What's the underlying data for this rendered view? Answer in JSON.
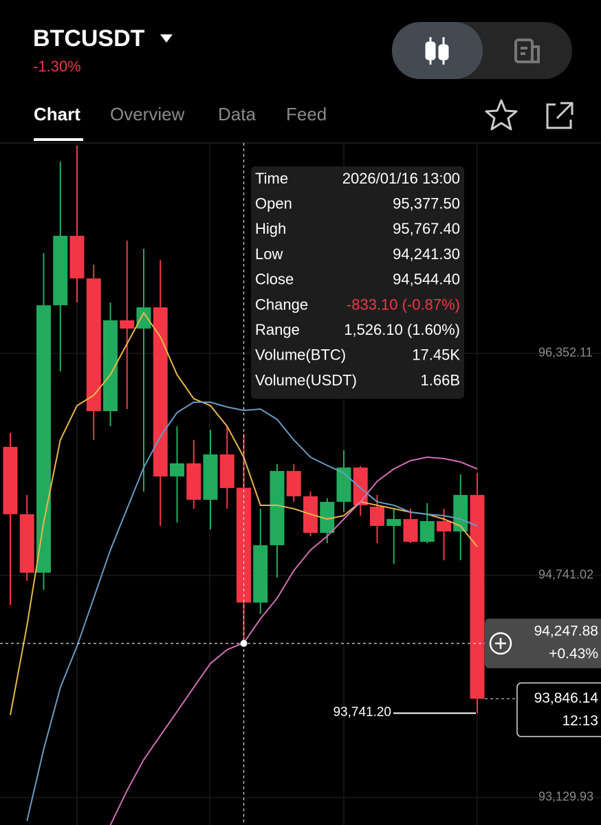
{
  "header": {
    "title": "BTCUSDT",
    "change": "-1.30%",
    "tabs": [
      "Chart",
      "Overview",
      "Data",
      "Feed"
    ]
  },
  "tooltip": {
    "rows": [
      [
        "Time",
        "2026/01/16 13:00"
      ],
      [
        "Open",
        "95,377.50"
      ],
      [
        "High",
        "95,767.40"
      ],
      [
        "Low",
        "94,241.30"
      ],
      [
        "Close",
        "94,544.40"
      ],
      [
        "Change",
        "-833.10 (-0.87%)"
      ],
      [
        "Range",
        "1,526.10 (1.60%)"
      ],
      [
        "Volume(BTC)",
        "17.45K"
      ],
      [
        "Volume(USDT)",
        "1.66B"
      ]
    ]
  },
  "chart_data": {
    "type": "candlestick",
    "up_color": "#22ab5e",
    "down_color": "#f23645",
    "open": [
      95674,
      95185,
      94761,
      96701,
      97205,
      96896,
      95933,
      96592,
      96532,
      96686,
      95459,
      95554,
      95290,
      95619,
      95377.5,
      94544,
      94960,
      95499,
      95315,
      95050,
      95275,
      95524,
      95240,
      95100,
      95150,
      94985,
      95135,
      95060,
      95325
    ],
    "high": [
      95774,
      95325,
      97080,
      97744,
      97860,
      96996,
      96721,
      97170,
      97110,
      97030,
      95823,
      95724,
      95798,
      95823,
      95767.4,
      95225,
      95549,
      95549,
      95350,
      95300,
      95649,
      95534,
      95325,
      95225,
      95225,
      95265,
      95225,
      95474,
      95484
    ],
    "low": [
      94526,
      94701,
      94636,
      96222,
      96721,
      95724,
      95823,
      95948,
      95350,
      95100,
      95125,
      95225,
      95075,
      95225,
      94241.3,
      94462,
      94726,
      95275,
      95025,
      94975,
      95200,
      95175,
      94975,
      94826,
      94975,
      94975,
      94851,
      94851,
      93741.2
    ],
    "close": [
      95185,
      94761,
      96701,
      97205,
      96896,
      95933,
      96592,
      96532,
      96686,
      95459,
      95554,
      95290,
      95619,
      95375,
      94544.4,
      94960,
      95499,
      95315,
      95050,
      95275,
      95524,
      95250,
      95100,
      95150,
      94985,
      95135,
      95060,
      95325,
      93846.14
    ],
    "lines": [
      {
        "color": "#e8b84a",
        "values": [
          93728,
          94377,
          95125,
          95724,
          95973,
          96048,
          96197,
          96422,
          96646,
          96472,
          96197,
          96023,
          95973,
          95823,
          95599,
          95250,
          95250,
          95225,
          95185,
          95150,
          95175,
          95275,
          95250,
          95225,
          95200,
          95185,
          95150,
          95100,
          94950
        ]
      },
      {
        "color": "#6a9bc3",
        "values": [
          null,
          92960,
          93479,
          93928,
          94227,
          94576,
          94925,
          95225,
          95524,
          95749,
          95923,
          95998,
          95998,
          95963,
          95938,
          95948,
          95873,
          95724,
          95599,
          95539,
          95484,
          95375,
          95275,
          95250,
          95200,
          95185,
          95175,
          95150,
          95100
        ]
      },
      {
        "color": "#d06fb5",
        "values": [
          null,
          null,
          null,
          null,
          null,
          null,
          92930,
          93180,
          93404,
          93579,
          93753,
          93928,
          94102,
          94202,
          94252,
          94427,
          94576,
          94776,
          94925,
          95025,
          95150,
          95275,
          95424,
          95514,
          95574,
          95599,
          95589,
          95564,
          95514
        ]
      }
    ],
    "ylim": [
      92930.3,
      97878.4
    ],
    "yticks": [
      {
        "value": 96352.11,
        "label": "96,352.11"
      },
      {
        "value": 94741.02,
        "label": "94,741.02"
      },
      {
        "value": 93129.93,
        "label": "93,129.93"
      }
    ],
    "grid": true,
    "low_label": "93,741.20",
    "close_label": "93,846.14",
    "countdown": "12:13",
    "crosshair": {
      "value": 94247.88,
      "label": "94,247.88",
      "change": "+0.43%"
    }
  }
}
